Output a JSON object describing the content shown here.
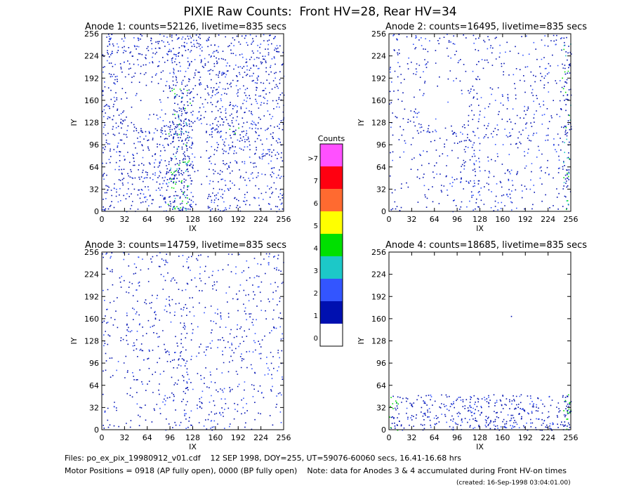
{
  "title": "PIXIE Raw Counts:  Front HV=28, Rear HV=34",
  "panels": [
    {
      "title": "Anode 1: counts=52126, livetime=835 secs",
      "xlabel": "IX",
      "ylabel": "IY",
      "xlim": [
        0,
        256
      ],
      "ylim": [
        0,
        256
      ],
      "xticks": [
        0,
        32,
        64,
        96,
        128,
        160,
        192,
        224,
        256
      ],
      "yticks": [
        0,
        32,
        64,
        96,
        128,
        160,
        192,
        224,
        256
      ]
    },
    {
      "title": "Anode 2: counts=16495, livetime=835 secs",
      "xlabel": "IX",
      "ylabel": "IY",
      "xlim": [
        0,
        256
      ],
      "ylim": [
        0,
        256
      ],
      "xticks": [
        0,
        32,
        64,
        96,
        128,
        160,
        192,
        224,
        256
      ],
      "yticks": [
        0,
        32,
        64,
        96,
        128,
        160,
        192,
        224,
        256
      ]
    },
    {
      "title": "Anode 3: counts=14759, livetime=835 secs",
      "xlabel": "IX",
      "ylabel": "IY",
      "xlim": [
        0,
        256
      ],
      "ylim": [
        0,
        256
      ],
      "xticks": [
        0,
        32,
        64,
        96,
        128,
        160,
        192,
        224,
        256
      ],
      "yticks": [
        0,
        32,
        64,
        96,
        128,
        160,
        192,
        224,
        256
      ]
    },
    {
      "title": "Anode 4: counts=18685, livetime=835 secs",
      "xlabel": "IX",
      "ylabel": "IY",
      "xlim": [
        0,
        256
      ],
      "ylim": [
        0,
        256
      ],
      "xticks": [
        0,
        32,
        64,
        96,
        128,
        160,
        192,
        224,
        256
      ],
      "yticks": [
        0,
        32,
        64,
        96,
        128,
        160,
        192,
        224,
        256
      ]
    }
  ],
  "colorbar": {
    "title": "Counts",
    "levels": [
      "0",
      "1",
      "2",
      "3",
      "4",
      "5",
      "6",
      "7",
      ">7"
    ],
    "colors": [
      "#ffffff",
      "#0010b0",
      "#3355ff",
      "#1cc8c8",
      "#00e000",
      "#ffff00",
      "#ff6a30",
      "#ff0010",
      "#ff50ff"
    ]
  },
  "footer": {
    "files": "Files: po_ex_pix_19980912_v01.cdf    12 SEP 1998, DOY=255, UT=59076-60060 secs, 16.41-16.68 hrs",
    "motor": "Motor Positions = 0918 (AP fully open), 0000 (BP fully open)    Note: data for Anodes 3 & 4 accumulated during Front HV-on times",
    "created": "(created: 16-Sep-1998 03:04:01.00)"
  }
}
